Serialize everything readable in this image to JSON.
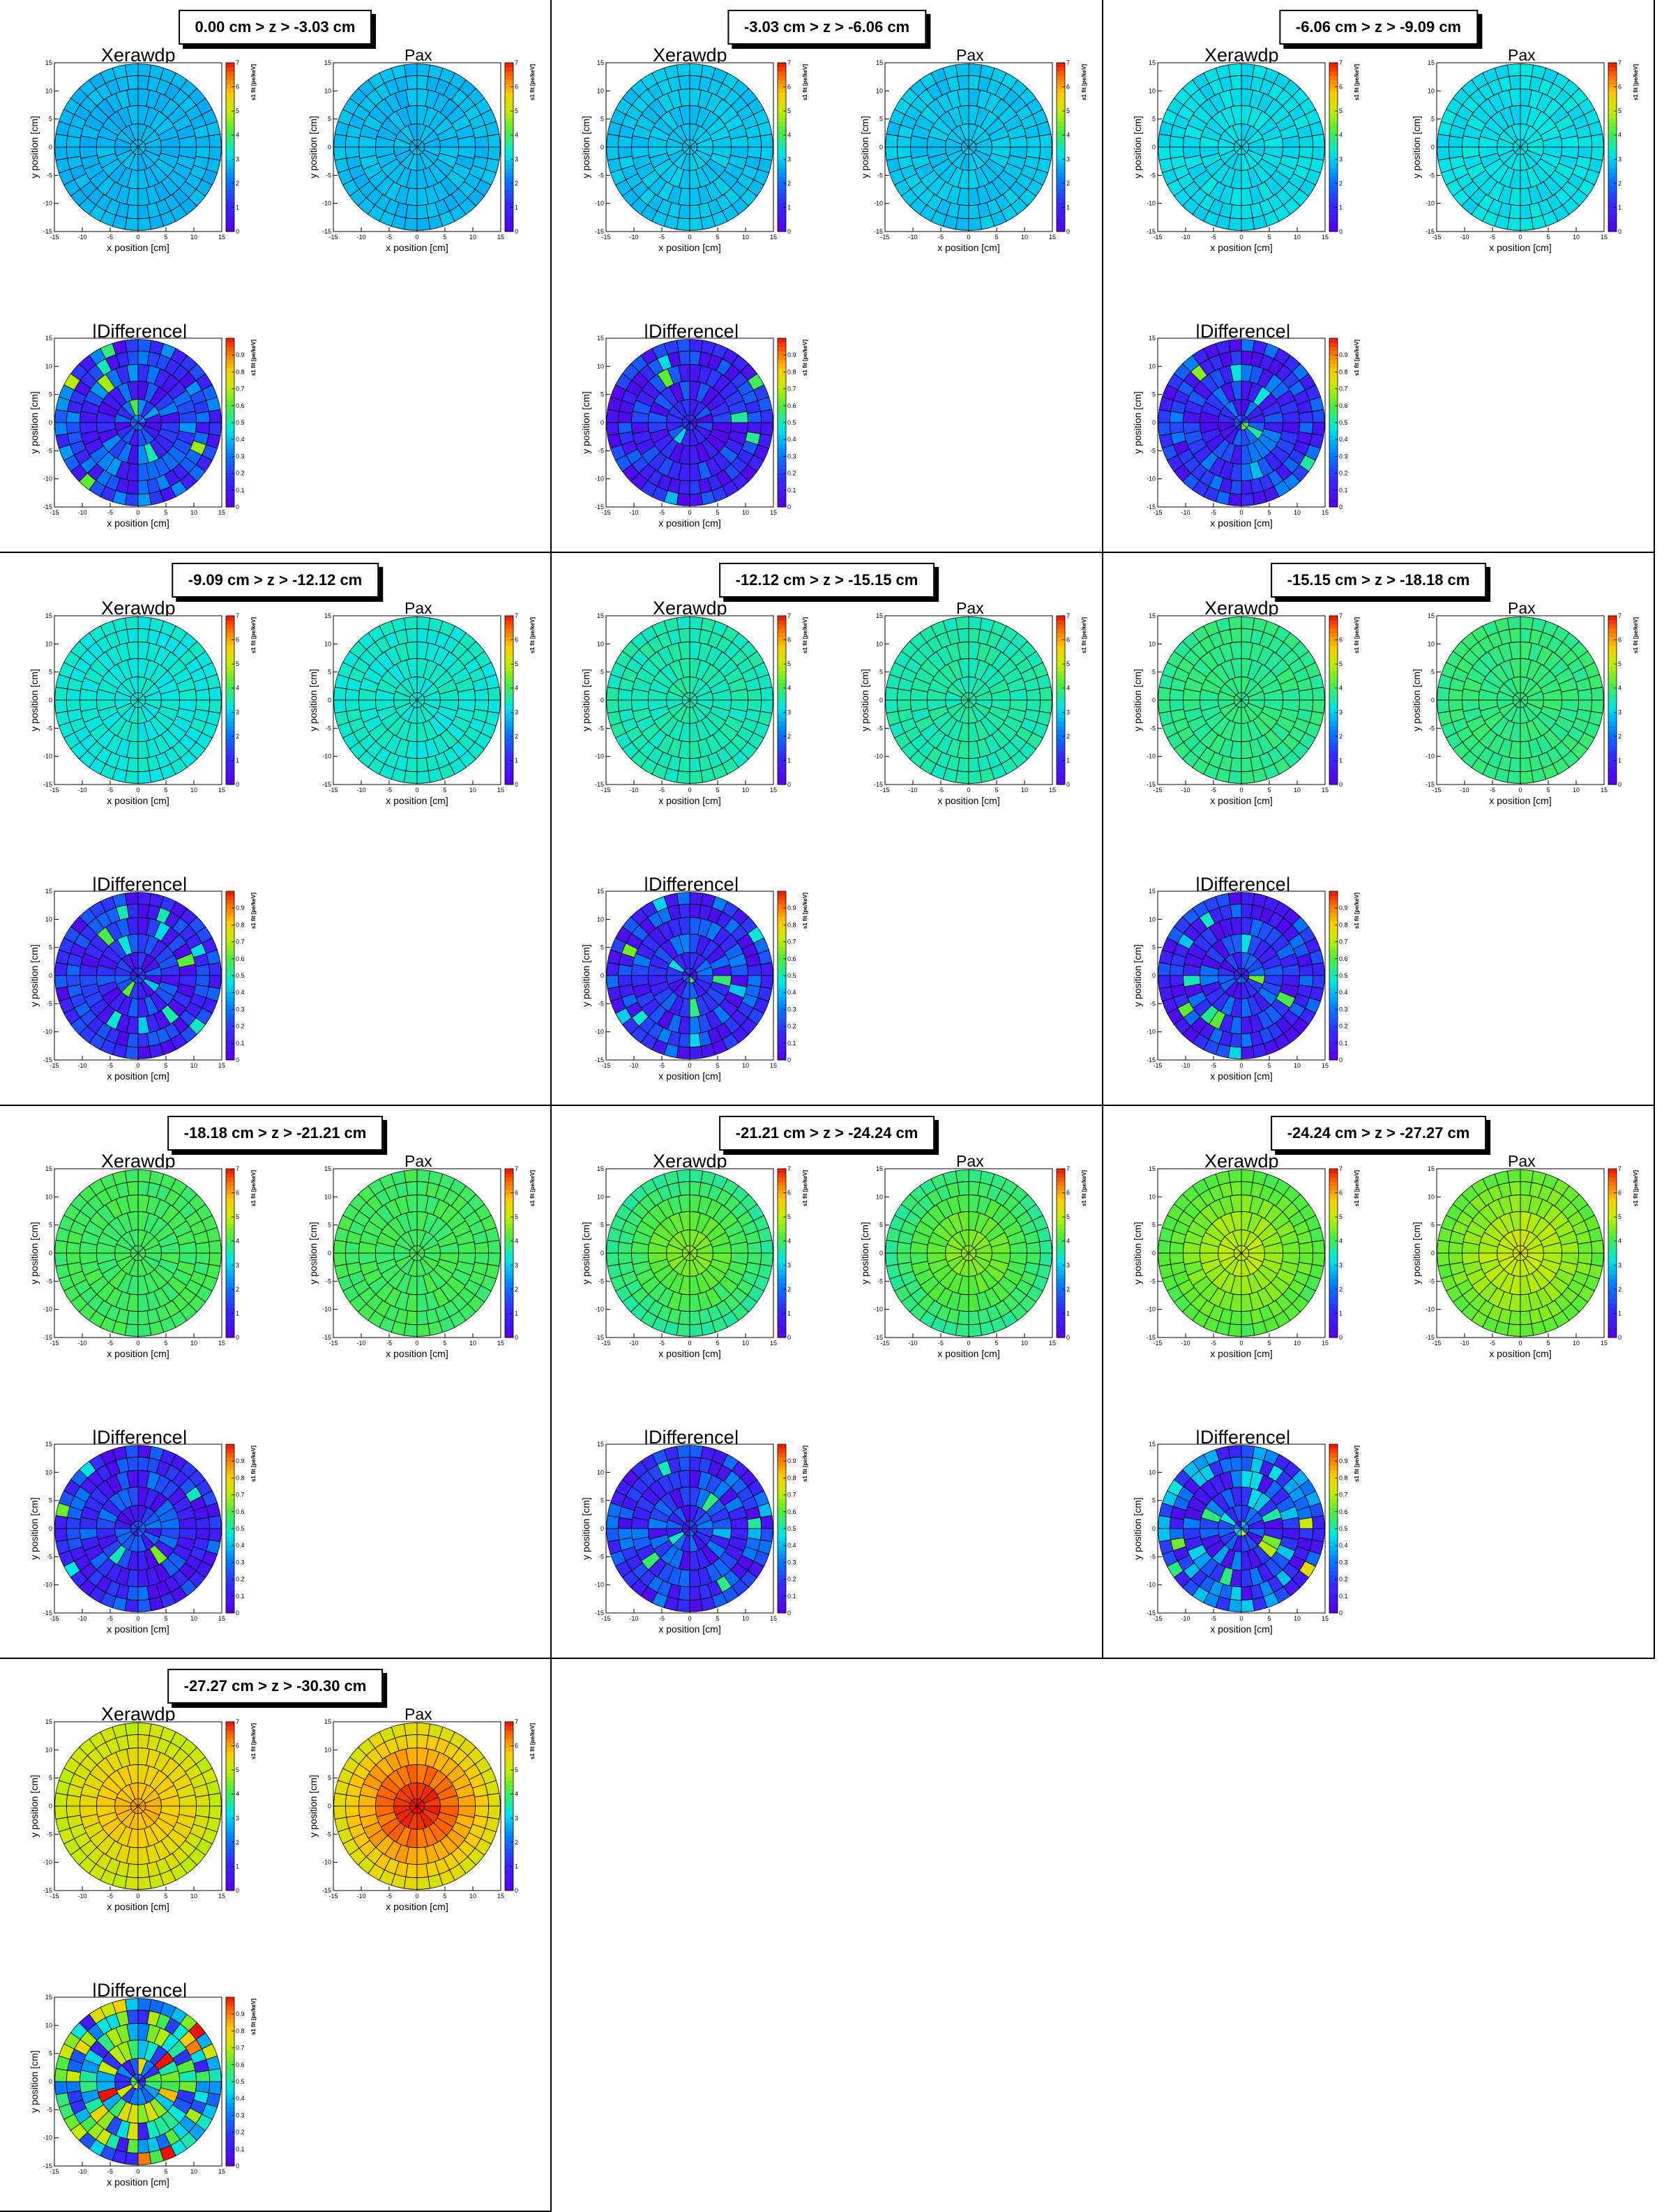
{
  "panel_titles": [
    "Xerawdp",
    "Pax",
    "|Difference|"
  ],
  "axis": {
    "xlabel": "x position [cm]",
    "ylabel": "y position [cm]",
    "zlabel": "s1 fit [pe/keV]",
    "xlim": [
      -15,
      15
    ],
    "ylim": [
      -15,
      15
    ],
    "xticks": [
      -15,
      -10,
      -5,
      0,
      5,
      10,
      15
    ],
    "yticks": [
      -15,
      -10,
      -5,
      0,
      5,
      10,
      15
    ],
    "z_ticks_main": [
      0,
      1,
      2,
      3,
      4,
      5,
      6,
      7
    ],
    "z_ticks_diff": [
      0,
      0.1,
      0.2,
      0.3,
      0.4,
      0.5,
      0.6,
      0.7,
      0.8,
      0.9
    ],
    "zlim_main": [
      0,
      7
    ],
    "zlim_diff": [
      0,
      1
    ]
  },
  "chart_data": [
    {
      "type": "heatmap",
      "z_range": "0.00 cm > z > -3.03 cm",
      "xerawdp_level": 2.75,
      "pax_level": 2.8,
      "pax_profile": "flat",
      "diff_level": 0.2
    },
    {
      "type": "heatmap",
      "z_range": "-3.03 cm > z > -6.06 cm",
      "xerawdp_level": 2.9,
      "pax_level": 2.9,
      "pax_profile": "flat",
      "diff_level": 0.15
    },
    {
      "type": "heatmap",
      "z_range": "-6.06 cm > z > -9.09 cm",
      "xerawdp_level": 3.1,
      "pax_level": 3.15,
      "pax_profile": "flat",
      "diff_level": 0.18
    },
    {
      "type": "heatmap",
      "z_range": "-9.09 cm > z > -12.12 cm",
      "xerawdp_level": 3.3,
      "pax_level": 3.35,
      "pax_profile": "flat",
      "diff_level": 0.15
    },
    {
      "type": "heatmap",
      "z_range": "-12.12 cm > z > -15.15 cm",
      "xerawdp_level": 3.5,
      "pax_level": 3.55,
      "pax_profile": "flat",
      "diff_level": 0.18
    },
    {
      "type": "heatmap",
      "z_range": "-15.15 cm > z > -18.18 cm",
      "xerawdp_level": 3.75,
      "pax_level": 3.8,
      "pax_profile": "flat",
      "diff_level": 0.17
    },
    {
      "type": "heatmap",
      "z_range": "-18.18 cm > z > -21.21 cm",
      "xerawdp_level": 4.0,
      "pax_level": 4.0,
      "pax_profile": "flat",
      "diff_level": 0.17
    },
    {
      "type": "heatmap",
      "z_range": "-21.21 cm > z > -24.24 cm",
      "xerawdp_level": 4.25,
      "pax_level": 4.3,
      "pax_profile": "centred",
      "diff_level": 0.18
    },
    {
      "type": "heatmap",
      "z_range": "-24.24 cm > z > -27.27 cm",
      "xerawdp_level": 4.7,
      "pax_level": 4.85,
      "pax_profile": "centred",
      "diff_level": 0.25
    },
    {
      "type": "heatmap",
      "z_range": "-27.27 cm > z > -30.30 cm",
      "xerawdp_level": 5.6,
      "pax_level": 5.8,
      "pax_profile": "peaked",
      "diff_level": 0.45
    }
  ]
}
